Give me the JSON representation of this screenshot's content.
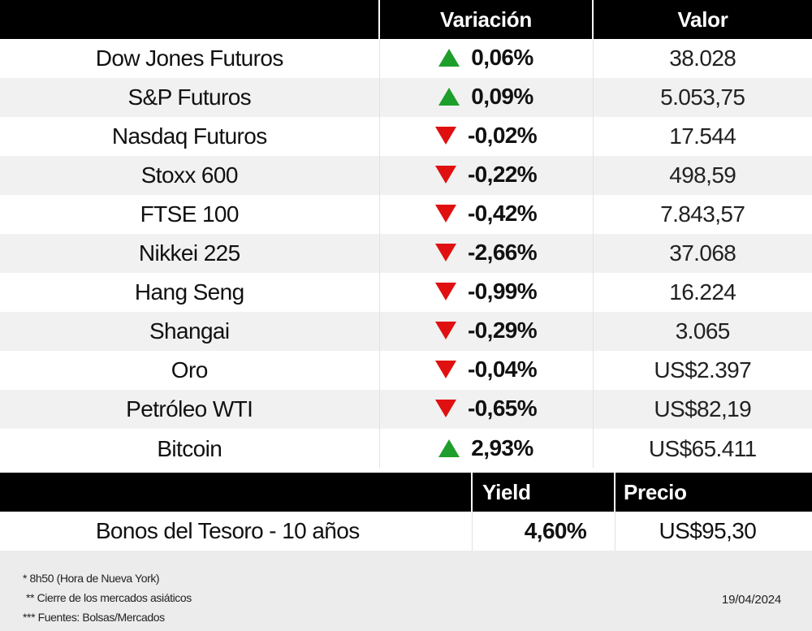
{
  "markets": {
    "headers": {
      "name": "",
      "variation": "Variación",
      "value": "Valor"
    },
    "rows": [
      {
        "name": "Dow Jones Futuros",
        "direction": "up",
        "variation": "0,06%",
        "value": "38.028"
      },
      {
        "name": "S&P Futuros",
        "direction": "up",
        "variation": "0,09%",
        "value": "5.053,75"
      },
      {
        "name": "Nasdaq Futuros",
        "direction": "down",
        "variation": "-0,02%",
        "value": "17.544"
      },
      {
        "name": "Stoxx 600",
        "direction": "down",
        "variation": "-0,22%",
        "value": "498,59"
      },
      {
        "name": "FTSE 100",
        "direction": "down",
        "variation": "-0,42%",
        "value": "7.843,57"
      },
      {
        "name": "Nikkei 225",
        "direction": "down",
        "variation": "-2,66%",
        "value": "37.068"
      },
      {
        "name": "Hang Seng",
        "direction": "down",
        "variation": "-0,99%",
        "value": "16.224"
      },
      {
        "name": "Shangai",
        "direction": "down",
        "variation": "-0,29%",
        "value": "3.065"
      },
      {
        "name": "Oro",
        "direction": "down",
        "variation": "-0,04%",
        "value": "US$2.397"
      },
      {
        "name": "Petróleo WTI",
        "direction": "down",
        "variation": "-0,65%",
        "value": "US$82,19"
      },
      {
        "name": "Bitcoin",
        "direction": "up",
        "variation": "2,93%",
        "value": "US$65.411"
      }
    ]
  },
  "bonds": {
    "headers": {
      "name": "",
      "yield": "Yield",
      "price": "Precio"
    },
    "row": {
      "name": "Bonos del Tesoro - 10 años",
      "yield": "4,60%",
      "price": "US$95,30"
    }
  },
  "footer": {
    "notes": [
      "* 8h50 (Hora de Nueva York)",
      "** Cierre de los mercados asiáticos",
      "*** Fuentes: Bolsas/Mercados"
    ],
    "date": "19/04/2024"
  },
  "colors": {
    "up": "#1e9e2a",
    "down": "#e01010",
    "header_bg": "#000000"
  },
  "icons": {
    "up": "triangle-up-icon",
    "down": "triangle-down-icon"
  }
}
